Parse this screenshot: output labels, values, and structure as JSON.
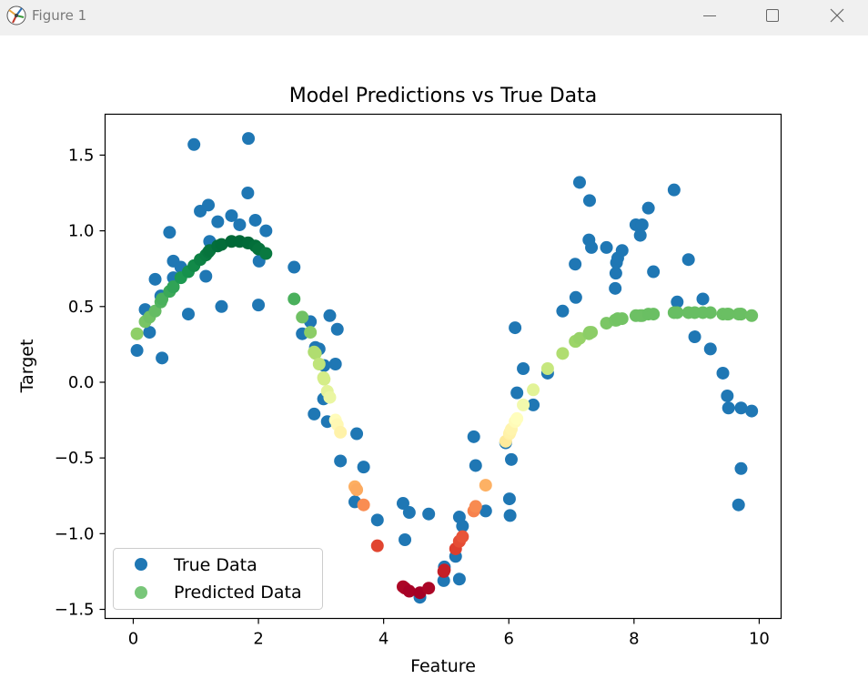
{
  "window": {
    "title": "Figure 1",
    "icons": {
      "app": "matplotlib-figure-icon",
      "minimize": "minimize-icon",
      "maximize": "maximize-icon",
      "close": "close-icon"
    }
  },
  "chart_data": {
    "type": "scatter",
    "title": "Model Predictions vs True Data",
    "xlabel": "Feature",
    "ylabel": "Target",
    "xlim": [
      -0.45,
      10.35
    ],
    "ylim": [
      -1.56,
      1.77
    ],
    "xticks": [
      0,
      2,
      4,
      6,
      8,
      10
    ],
    "xtick_labels": [
      "0",
      "2",
      "4",
      "6",
      "8",
      "10"
    ],
    "yticks": [
      1.5,
      1.0,
      0.5,
      0.0,
      -0.5,
      -1.0,
      -1.5
    ],
    "ytick_labels": [
      "1.5",
      "1.0",
      "0.5",
      "0.0",
      "−0.5",
      "−1.0",
      "−1.5"
    ],
    "grid": false,
    "legend_position": "lower-left",
    "series": [
      {
        "name": "True Data",
        "color": "#1f77b4",
        "points": [
          [
            0.06,
            0.21
          ],
          [
            0.19,
            0.48
          ],
          [
            0.26,
            0.33
          ],
          [
            0.35,
            0.68
          ],
          [
            0.44,
            0.57
          ],
          [
            0.46,
            0.16
          ],
          [
            0.58,
            0.99
          ],
          [
            0.64,
            0.8
          ],
          [
            0.64,
            0.69
          ],
          [
            0.76,
            0.76
          ],
          [
            0.88,
            0.45
          ],
          [
            0.97,
            1.57
          ],
          [
            1.07,
            1.13
          ],
          [
            1.16,
            0.7
          ],
          [
            1.2,
            1.17
          ],
          [
            1.22,
            0.93
          ],
          [
            1.35,
            1.06
          ],
          [
            1.41,
            0.5
          ],
          [
            1.57,
            1.1
          ],
          [
            1.7,
            1.04
          ],
          [
            1.83,
            1.25
          ],
          [
            1.84,
            1.61
          ],
          [
            1.95,
            1.07
          ],
          [
            2.0,
            0.51
          ],
          [
            2.01,
            0.8
          ],
          [
            2.12,
            1.0
          ],
          [
            2.57,
            0.76
          ],
          [
            2.7,
            0.32
          ],
          [
            2.83,
            0.4
          ],
          [
            2.89,
            -0.21
          ],
          [
            2.91,
            0.23
          ],
          [
            2.97,
            0.22
          ],
          [
            3.04,
            -0.11
          ],
          [
            3.05,
            0.11
          ],
          [
            3.1,
            -0.26
          ],
          [
            3.14,
            0.44
          ],
          [
            3.23,
            0.12
          ],
          [
            3.26,
            0.35
          ],
          [
            3.31,
            -0.52
          ],
          [
            3.54,
            -0.79
          ],
          [
            3.57,
            -0.34
          ],
          [
            3.68,
            -0.56
          ],
          [
            3.9,
            -0.91
          ],
          [
            4.31,
            -0.8
          ],
          [
            4.34,
            -1.04
          ],
          [
            4.41,
            -0.86
          ],
          [
            4.58,
            -1.42
          ],
          [
            4.72,
            -0.87
          ],
          [
            4.96,
            -1.31
          ],
          [
            4.97,
            -1.22
          ],
          [
            5.15,
            -1.15
          ],
          [
            5.21,
            -0.89
          ],
          [
            5.21,
            -1.3
          ],
          [
            5.26,
            -0.95
          ],
          [
            5.44,
            -0.36
          ],
          [
            5.47,
            -0.55
          ],
          [
            5.63,
            -0.85
          ],
          [
            5.95,
            -0.4
          ],
          [
            6.01,
            -0.77
          ],
          [
            6.02,
            -0.88
          ],
          [
            6.04,
            -0.51
          ],
          [
            6.1,
            0.36
          ],
          [
            6.13,
            -0.07
          ],
          [
            6.23,
            0.09
          ],
          [
            6.39,
            -0.15
          ],
          [
            6.62,
            0.06
          ],
          [
            6.86,
            0.47
          ],
          [
            7.06,
            0.78
          ],
          [
            7.07,
            0.56
          ],
          [
            7.13,
            1.32
          ],
          [
            7.28,
            0.94
          ],
          [
            7.29,
            1.2
          ],
          [
            7.32,
            0.89
          ],
          [
            7.56,
            0.89
          ],
          [
            7.7,
            0.62
          ],
          [
            7.71,
            0.72
          ],
          [
            7.72,
            0.79
          ],
          [
            7.74,
            0.82
          ],
          [
            7.81,
            0.87
          ],
          [
            8.03,
            1.04
          ],
          [
            8.1,
            0.97
          ],
          [
            8.13,
            1.04
          ],
          [
            8.23,
            1.15
          ],
          [
            8.31,
            0.73
          ],
          [
            8.64,
            1.27
          ],
          [
            8.69,
            0.53
          ],
          [
            8.87,
            0.81
          ],
          [
            8.97,
            0.3
          ],
          [
            9.1,
            0.55
          ],
          [
            9.22,
            0.22
          ],
          [
            9.42,
            0.06
          ],
          [
            9.49,
            -0.09
          ],
          [
            9.51,
            -0.17
          ],
          [
            9.67,
            -0.81
          ],
          [
            9.71,
            -0.57
          ],
          [
            9.71,
            -0.17
          ],
          [
            9.88,
            -0.19
          ]
        ]
      },
      {
        "name": "Predicted Data",
        "color": "#78c679",
        "colormap": "RdYlGn",
        "points": [
          [
            0.06,
            0.32
          ],
          [
            0.19,
            0.4
          ],
          [
            0.26,
            0.43
          ],
          [
            0.35,
            0.47
          ],
          [
            0.44,
            0.53
          ],
          [
            0.46,
            0.55
          ],
          [
            0.58,
            0.6
          ],
          [
            0.64,
            0.63
          ],
          [
            0.64,
            0.63
          ],
          [
            0.76,
            0.69
          ],
          [
            0.88,
            0.73
          ],
          [
            0.97,
            0.77
          ],
          [
            1.07,
            0.81
          ],
          [
            1.16,
            0.84
          ],
          [
            1.2,
            0.86
          ],
          [
            1.22,
            0.87
          ],
          [
            1.35,
            0.9
          ],
          [
            1.41,
            0.91
          ],
          [
            1.57,
            0.93
          ],
          [
            1.7,
            0.93
          ],
          [
            1.83,
            0.92
          ],
          [
            1.84,
            0.92
          ],
          [
            1.95,
            0.9
          ],
          [
            2.0,
            0.88
          ],
          [
            2.01,
            0.88
          ],
          [
            2.12,
            0.85
          ],
          [
            2.57,
            0.55
          ],
          [
            2.7,
            0.43
          ],
          [
            2.83,
            0.33
          ],
          [
            2.89,
            0.2
          ],
          [
            2.91,
            0.19
          ],
          [
            2.97,
            0.12
          ],
          [
            3.04,
            0.03
          ],
          [
            3.05,
            0.02
          ],
          [
            3.1,
            -0.06
          ],
          [
            3.14,
            -0.1
          ],
          [
            3.23,
            -0.25
          ],
          [
            3.26,
            -0.28
          ],
          [
            3.31,
            -0.33
          ],
          [
            3.54,
            -0.69
          ],
          [
            3.57,
            -0.71
          ],
          [
            3.68,
            -0.81
          ],
          [
            3.9,
            -1.08
          ],
          [
            4.31,
            -1.35
          ],
          [
            4.34,
            -1.36
          ],
          [
            4.41,
            -1.38
          ],
          [
            4.58,
            -1.39
          ],
          [
            4.72,
            -1.36
          ],
          [
            4.96,
            -1.25
          ],
          [
            4.97,
            -1.24
          ],
          [
            5.15,
            -1.1
          ],
          [
            5.21,
            -1.05
          ],
          [
            5.21,
            -1.05
          ],
          [
            5.26,
            -1.02
          ],
          [
            5.44,
            -0.85
          ],
          [
            5.47,
            -0.82
          ],
          [
            5.63,
            -0.68
          ],
          [
            5.95,
            -0.39
          ],
          [
            6.01,
            -0.34
          ],
          [
            6.02,
            -0.33
          ],
          [
            6.04,
            -0.31
          ],
          [
            6.1,
            -0.26
          ],
          [
            6.13,
            -0.24
          ],
          [
            6.23,
            -0.15
          ],
          [
            6.39,
            -0.05
          ],
          [
            6.62,
            0.09
          ],
          [
            6.86,
            0.19
          ],
          [
            7.06,
            0.27
          ],
          [
            7.07,
            0.27
          ],
          [
            7.13,
            0.29
          ],
          [
            7.28,
            0.32
          ],
          [
            7.29,
            0.33
          ],
          [
            7.32,
            0.33
          ],
          [
            7.56,
            0.39
          ],
          [
            7.7,
            0.41
          ],
          [
            7.71,
            0.41
          ],
          [
            7.72,
            0.41
          ],
          [
            7.74,
            0.42
          ],
          [
            7.81,
            0.42
          ],
          [
            8.03,
            0.44
          ],
          [
            8.1,
            0.44
          ],
          [
            8.13,
            0.44
          ],
          [
            8.23,
            0.45
          ],
          [
            8.31,
            0.45
          ],
          [
            8.64,
            0.46
          ],
          [
            8.69,
            0.46
          ],
          [
            8.87,
            0.46
          ],
          [
            8.97,
            0.46
          ],
          [
            9.1,
            0.46
          ],
          [
            9.22,
            0.46
          ],
          [
            9.42,
            0.45
          ],
          [
            9.49,
            0.45
          ],
          [
            9.51,
            0.45
          ],
          [
            9.67,
            0.45
          ],
          [
            9.71,
            0.45
          ],
          [
            9.71,
            0.45
          ],
          [
            9.88,
            0.44
          ]
        ]
      }
    ]
  }
}
